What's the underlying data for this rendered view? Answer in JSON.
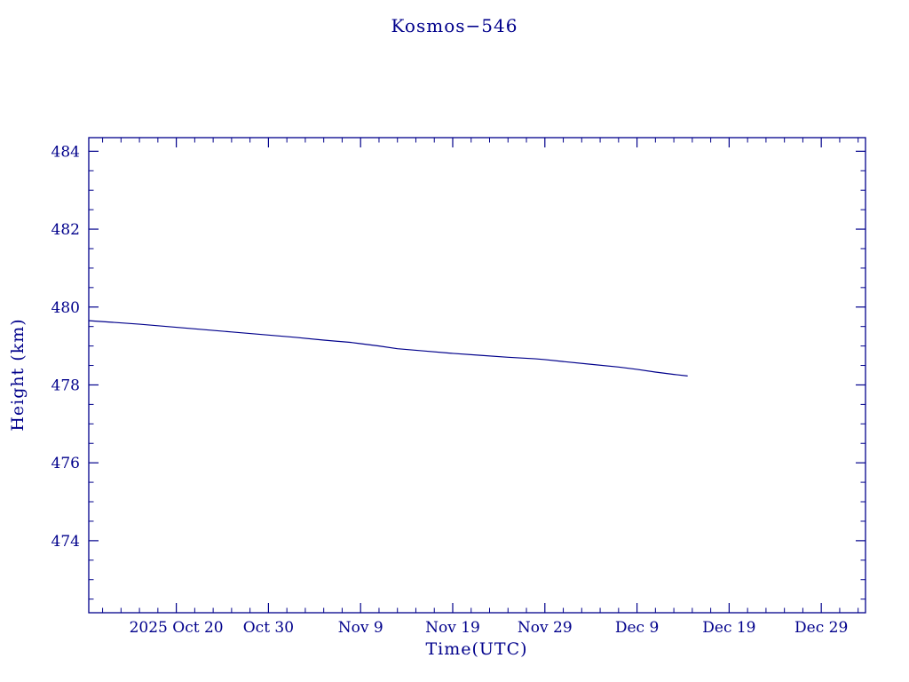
{
  "colors": {
    "ink": "#00008B",
    "line": "#00008B",
    "background": "#ffffff"
  },
  "chart_data": {
    "type": "line",
    "title": "Kosmos−546",
    "xlabel": "Time(UTC)",
    "ylabel": "Height (km)",
    "x_tick_labels": [
      "2025 Oct 20",
      "Oct 30",
      "Nov 9",
      "Nov 19",
      "Nov 29",
      "Dec 9",
      "Dec 19",
      "Dec 29"
    ],
    "x_tick_days": [
      10,
      20,
      30,
      40,
      50,
      60,
      70,
      80
    ],
    "x_range_days": [
      0.5,
      84.8
    ],
    "y_ticks": [
      474,
      476,
      478,
      480,
      482,
      484
    ],
    "y_range": [
      472.15,
      484.35
    ],
    "grid": "off",
    "legend": "none",
    "series": [
      {
        "name": "height",
        "x_days": [
          0.5,
          3,
          6,
          8,
          10,
          13,
          16,
          19,
          20,
          23,
          26,
          29,
          30,
          32,
          34,
          37,
          40,
          43,
          46,
          49,
          50,
          52,
          55,
          58,
          60,
          62,
          64,
          65.5
        ],
        "y": [
          479.65,
          479.61,
          479.56,
          479.52,
          479.48,
          479.42,
          479.36,
          479.3,
          479.28,
          479.22,
          479.15,
          479.09,
          479.06,
          479.0,
          478.93,
          478.87,
          478.81,
          478.76,
          478.71,
          478.67,
          478.65,
          478.6,
          478.53,
          478.46,
          478.4,
          478.33,
          478.27,
          478.23
        ]
      }
    ]
  }
}
